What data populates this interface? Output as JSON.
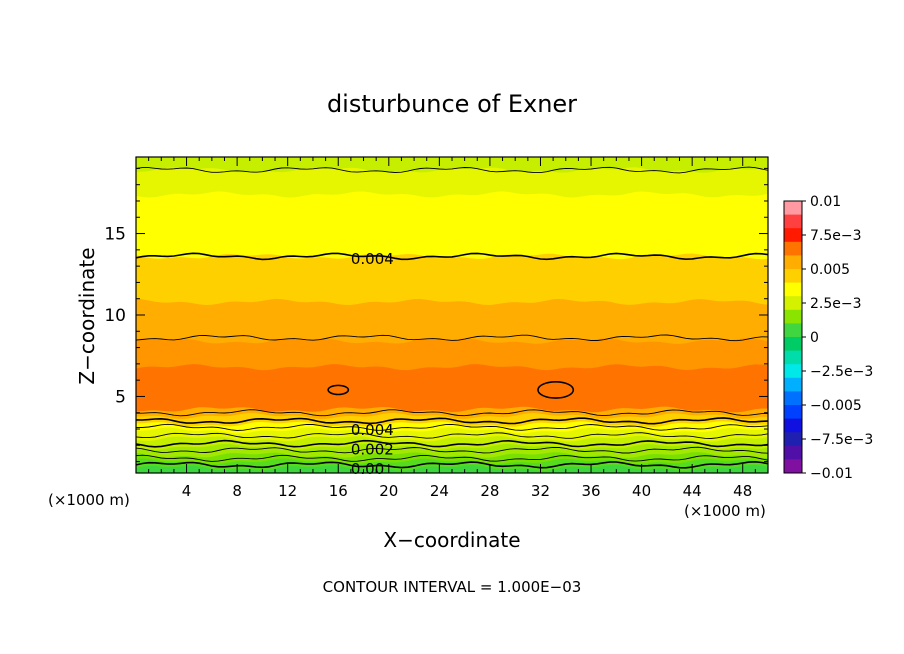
{
  "chart_data": {
    "type": "contour",
    "title": "disturbunce of Exner",
    "xlabel": "X−coordinate",
    "ylabel": "Z−coordinate",
    "x_unit": "(×1000 m)",
    "y_unit": "(×1000 m)",
    "xlim": [
      0,
      50
    ],
    "ylim": [
      0.3,
      19.7
    ],
    "xticks": [
      4,
      8,
      12,
      16,
      20,
      24,
      28,
      32,
      36,
      40,
      44,
      48
    ],
    "yticks": [
      5,
      10,
      15
    ],
    "footer": "CONTOUR INTERVAL =  1.000E−03",
    "contour_labels": [
      {
        "text": "0.004",
        "x": 17.0,
        "z": 13.5
      },
      {
        "text": "0.004",
        "x": 17.0,
        "z": 3.0
      },
      {
        "text": "0.002",
        "x": 17.0,
        "z": 1.8
      },
      {
        "text": "0.00",
        "x": 17.0,
        "z": 0.6
      }
    ],
    "colorbar": {
      "vmin": -0.01,
      "vmax": 0.01,
      "tick_labels": [
        "0.01",
        "7.5e−3",
        "0.005",
        "2.5e−3",
        "0",
        "−2.5e−3",
        "−0.005",
        "−7.5e−3",
        "−0.01"
      ],
      "colors": [
        "#ff9aa2",
        "#ff4040",
        "#ff1a00",
        "#ff7400",
        "#ffad00",
        "#ffd000",
        "#ffff00",
        "#d4f200",
        "#8ae400",
        "#3fd63f",
        "#00cc66",
        "#00ddaa",
        "#00e8e8",
        "#00b0ff",
        "#0070ff",
        "#0040ff",
        "#1010e0",
        "#2020b0",
        "#5010a8",
        "#8010a0"
      ]
    },
    "bands": [
      {
        "z_top": 0.6,
        "color": "#3ed63e"
      },
      {
        "z_top": 1.0,
        "color": "#55dc1e"
      },
      {
        "z_top": 1.4,
        "color": "#7ae000"
      },
      {
        "z_top": 1.9,
        "color": "#a2e800"
      },
      {
        "z_top": 2.4,
        "color": "#c6ef00"
      },
      {
        "z_top": 2.9,
        "color": "#e6f600"
      },
      {
        "z_top": 3.3,
        "color": "#ffff00"
      },
      {
        "z_top": 3.8,
        "color": "#ffd000"
      },
      {
        "z_top": 4.2,
        "color": "#ffad00"
      },
      {
        "z_top": 6.8,
        "color": "#ff7400"
      },
      {
        "z_top": 8.4,
        "color": "#ff9600"
      },
      {
        "z_top": 10.8,
        "color": "#ffad00"
      },
      {
        "z_top": 13.6,
        "color": "#ffd000"
      },
      {
        "z_top": 17.4,
        "color": "#ffff00"
      },
      {
        "z_top": 18.9,
        "color": "#e6f600"
      },
      {
        "z_top": 19.7,
        "color": "#c6ef00"
      }
    ],
    "contours": [
      {
        "z": 0.8,
        "width": 1.6
      },
      {
        "z": 1.2,
        "width": 0.9
      },
      {
        "z": 1.7,
        "width": 0.9
      },
      {
        "z": 2.1,
        "width": 1.6
      },
      {
        "z": 2.6,
        "width": 0.9
      },
      {
        "z": 3.1,
        "width": 0.9
      },
      {
        "z": 3.5,
        "width": 1.6
      },
      {
        "z": 4.0,
        "width": 0.9
      },
      {
        "z": 8.6,
        "width": 0.9
      },
      {
        "z": 13.6,
        "width": 1.6
      },
      {
        "z": 18.9,
        "width": 0.9
      }
    ],
    "closed_contours": [
      {
        "x": 16.0,
        "z": 5.4,
        "rx": 0.8,
        "rz": 0.28
      },
      {
        "x": 33.2,
        "z": 5.4,
        "rx": 1.4,
        "rz": 0.5
      }
    ]
  }
}
